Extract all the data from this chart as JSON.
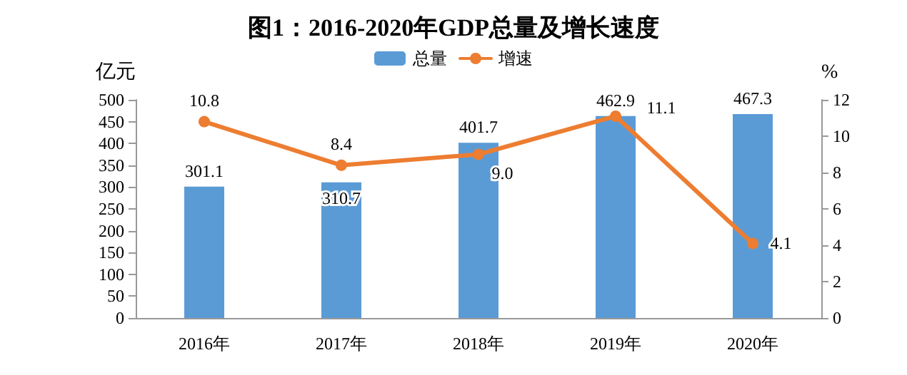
{
  "chart_data": {
    "type": "bar",
    "title": "图1：2016-2020年GDP总量及增长速度",
    "ylabel": "亿元",
    "y2label": "%",
    "categories": [
      "2016年",
      "2017年",
      "2018年",
      "2019年",
      "2020年"
    ],
    "series": [
      {
        "name": "总量",
        "color": "#5b9bd5",
        "values": [
          301.1,
          310.7,
          401.7,
          462.9,
          467.3
        ],
        "value_labels": [
          "301.1",
          "310.7",
          "401.7",
          "462.9",
          "467.3"
        ]
      },
      {
        "name": "增速",
        "type": "line",
        "axis": "y2",
        "color": "#ed7d31",
        "values": [
          10.8,
          8.4,
          9.0,
          11.1,
          4.1
        ],
        "value_labels": [
          "10.8",
          "8.4",
          "9.0",
          "11.1",
          "4.1"
        ]
      }
    ],
    "ylim": [
      0,
      500
    ],
    "yticks": [
      0,
      50,
      100,
      150,
      200,
      250,
      300,
      350,
      400,
      450,
      500
    ],
    "y2lim": [
      0,
      12
    ],
    "y2ticks": [
      0,
      2,
      4,
      6,
      8,
      10,
      12
    ],
    "legend": "top",
    "grid": false,
    "marker": "circle",
    "line_style": "solid"
  }
}
